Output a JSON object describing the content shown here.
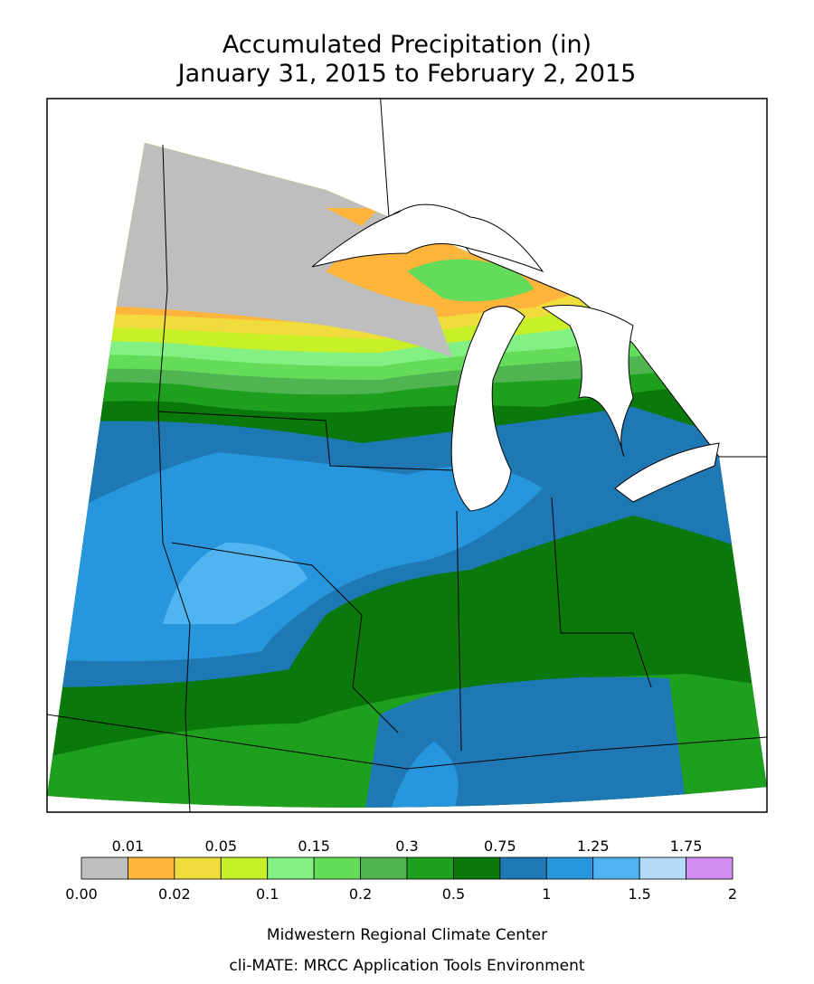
{
  "title": [
    "Accumulated Precipitation (in)",
    "January 31, 2015 to February 2, 2015"
  ],
  "legend": {
    "ticks": [
      "0.00",
      "0.01",
      "0.02",
      "0.05",
      "0.1",
      "0.15",
      "0.2",
      "0.3",
      "0.5",
      "0.75",
      "1",
      "1.25",
      "1.5",
      "1.75",
      "2"
    ],
    "colors": [
      "#bebebe",
      "#ffb43c",
      "#f0dc3c",
      "#c8f028",
      "#82f082",
      "#64dc5a",
      "#50b450",
      "#1ea01e",
      "#0a780a",
      "#1e78b4",
      "#2896dc",
      "#50b4f0",
      "#b4dcfa",
      "#d28cf0"
    ]
  },
  "footer": [
    "Midwestern Regional Climate Center",
    "cli-MATE: MRCC Application Tools Environment"
  ]
}
